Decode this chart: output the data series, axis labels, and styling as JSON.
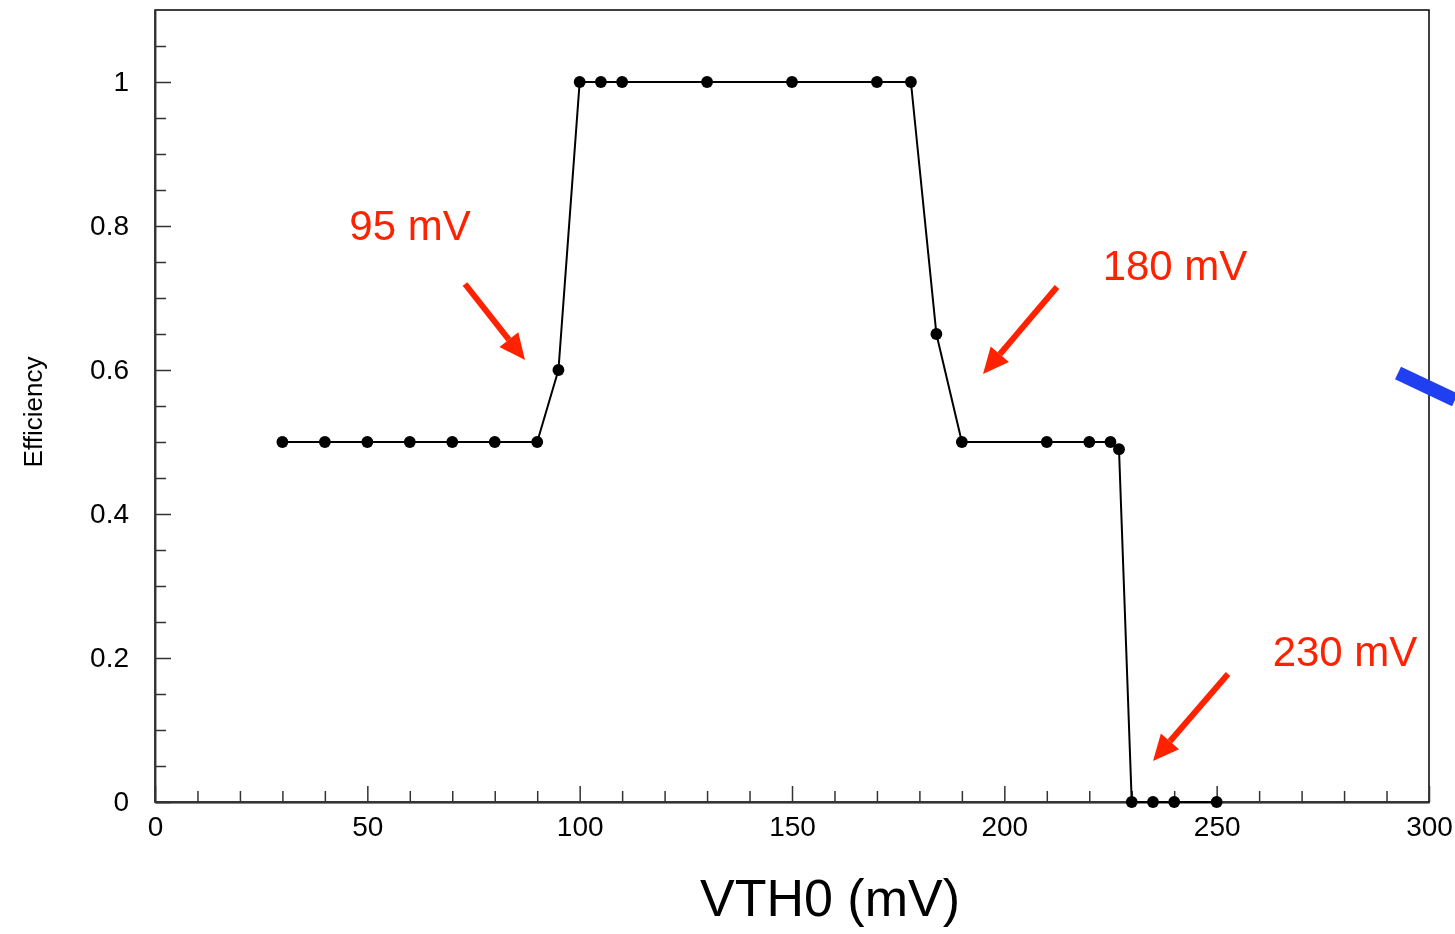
{
  "chart_data": {
    "type": "line",
    "xlabel": "VTH0 (mV)",
    "ylabel": "Efficiency",
    "x": [
      30,
      40,
      50,
      60,
      70,
      80,
      90,
      95,
      100,
      105,
      110,
      130,
      150,
      170,
      178,
      184,
      190,
      210,
      220,
      225,
      227,
      230,
      235,
      240,
      250
    ],
    "series": [
      {
        "color": "#000000",
        "values": [
          0.5,
          0.5,
          0.5,
          0.5,
          0.5,
          0.5,
          0.5,
          0.6,
          1,
          1,
          1,
          1,
          1,
          1,
          1,
          0.65,
          0.5,
          0.5,
          0.5,
          0.5,
          0.49,
          0,
          0,
          0,
          0
        ]
      }
    ],
    "marker": "circle",
    "line_style": "solid",
    "grid": false,
    "xlim": [
      0,
      300
    ],
    "ylim": [
      0,
      1.1
    ],
    "xticks": [
      0,
      {
        "value": 10,
        "label": null
      },
      {
        "value": 20,
        "label": null
      },
      {
        "value": 30,
        "label": null
      },
      {
        "value": 40,
        "label": null
      },
      50,
      {
        "value": 60,
        "label": null
      },
      {
        "value": 70,
        "label": null
      },
      {
        "value": 80,
        "label": null
      },
      {
        "value": 90,
        "label": null
      },
      100,
      {
        "value": 110,
        "label": null
      },
      {
        "value": 120,
        "label": null
      },
      {
        "value": 130,
        "label": null
      },
      {
        "value": 140,
        "label": null
      },
      150,
      {
        "value": 160,
        "label": null
      },
      {
        "value": 170,
        "label": null
      },
      {
        "value": 180,
        "label": null
      },
      {
        "value": 190,
        "label": null
      },
      200,
      {
        "value": 210,
        "label": null
      },
      {
        "value": 220,
        "label": null
      },
      {
        "value": 230,
        "label": null
      },
      {
        "value": 240,
        "label": null
      },
      250,
      {
        "value": 260,
        "label": null
      },
      {
        "value": 270,
        "label": null
      },
      {
        "value": 280,
        "label": null
      },
      {
        "value": 290,
        "label": null
      },
      300
    ],
    "yticks": [
      0,
      {
        "value": 0.05,
        "label": null
      },
      {
        "value": 0.1,
        "label": null
      },
      {
        "value": 0.15,
        "label": null
      },
      0.2,
      {
        "value": 0.25,
        "label": null
      },
      {
        "value": 0.3,
        "label": null
      },
      {
        "value": 0.35,
        "label": null
      },
      0.4,
      {
        "value": 0.45,
        "label": null
      },
      {
        "value": 0.5,
        "label": null
      },
      {
        "value": 0.55,
        "label": null
      },
      0.6,
      {
        "value": 0.65,
        "label": null
      },
      {
        "value": 0.7,
        "label": null
      },
      {
        "value": 0.75,
        "label": null
      },
      0.8,
      {
        "value": 0.85,
        "label": null
      },
      {
        "value": 0.9,
        "label": null
      },
      {
        "value": 0.95,
        "label": null
      },
      1,
      {
        "value": 1.05,
        "label": null
      }
    ],
    "annotations": [
      "95 mV",
      "180 mV",
      "230 mV"
    ]
  }
}
